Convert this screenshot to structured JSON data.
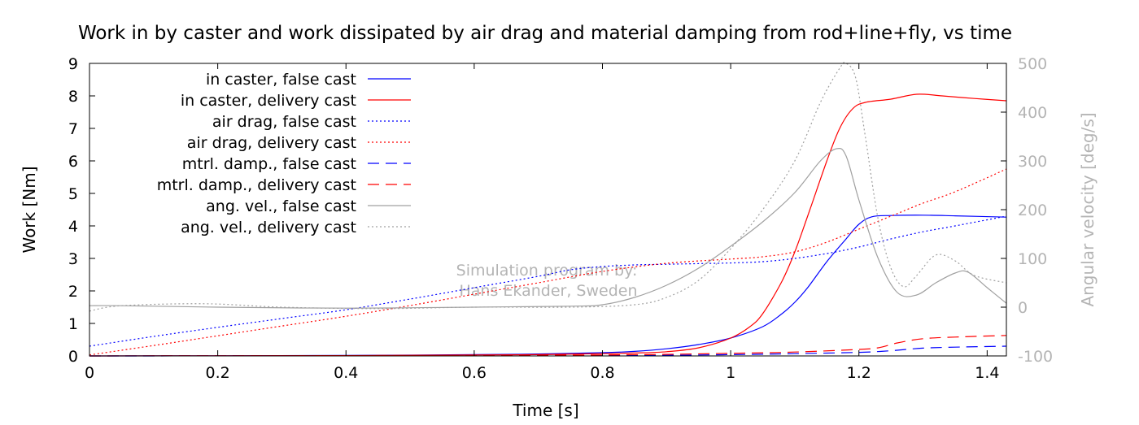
{
  "chart_data": {
    "type": "line",
    "title": "Work in by caster and work dissipated by air drag and material damping from rod+line+fly, vs time",
    "xlabel": "Time [s]",
    "ylabel": "Work [Nm]",
    "y2label": "Angular velocity [deg/s]",
    "xlim": [
      0,
      1.43
    ],
    "ylim": [
      0,
      9
    ],
    "y2lim": [
      -100,
      500
    ],
    "xticks": [
      "0",
      "0.2",
      "0.4",
      "0.6",
      "0.8",
      "1",
      "1.2",
      "1.4"
    ],
    "yticks": [
      "0",
      "1",
      "2",
      "3",
      "4",
      "5",
      "6",
      "7",
      "8",
      "9"
    ],
    "y2ticks": [
      "-100",
      "0",
      "100",
      "200",
      "300",
      "400",
      "500"
    ],
    "grid": false,
    "legend_position": "top-left",
    "watermark": [
      "Simulation program by:",
      "Hans Ekander, Sweden"
    ],
    "series": [
      {
        "name": "in caster, false cast",
        "color": "#0000ff",
        "dash": "solid",
        "axis": "left",
        "points": [
          [
            0,
            0
          ],
          [
            0.2,
            0.005
          ],
          [
            0.4,
            0.015
          ],
          [
            0.6,
            0.04
          ],
          [
            0.7,
            0.06
          ],
          [
            0.8,
            0.1
          ],
          [
            0.85,
            0.14
          ],
          [
            0.9,
            0.22
          ],
          [
            0.95,
            0.35
          ],
          [
            1.0,
            0.55
          ],
          [
            1.05,
            0.9
          ],
          [
            1.08,
            1.3
          ],
          [
            1.1,
            1.65
          ],
          [
            1.12,
            2.1
          ],
          [
            1.15,
            2.9
          ],
          [
            1.18,
            3.6
          ],
          [
            1.2,
            4.05
          ],
          [
            1.22,
            4.28
          ],
          [
            1.25,
            4.32
          ],
          [
            1.3,
            4.33
          ],
          [
            1.35,
            4.31
          ],
          [
            1.43,
            4.27
          ]
        ]
      },
      {
        "name": "in caster, delivery cast",
        "color": "#ff0000",
        "dash": "solid",
        "axis": "left",
        "points": [
          [
            0,
            0
          ],
          [
            0.2,
            0.005
          ],
          [
            0.4,
            0.01
          ],
          [
            0.6,
            0.03
          ],
          [
            0.7,
            0.04
          ],
          [
            0.8,
            0.07
          ],
          [
            0.85,
            0.09
          ],
          [
            0.9,
            0.13
          ],
          [
            0.95,
            0.25
          ],
          [
            1.0,
            0.55
          ],
          [
            1.03,
            0.9
          ],
          [
            1.05,
            1.3
          ],
          [
            1.08,
            2.3
          ],
          [
            1.1,
            3.2
          ],
          [
            1.12,
            4.3
          ],
          [
            1.15,
            6.0
          ],
          [
            1.17,
            7.0
          ],
          [
            1.19,
            7.6
          ],
          [
            1.21,
            7.8
          ],
          [
            1.25,
            7.9
          ],
          [
            1.29,
            8.05
          ],
          [
            1.33,
            8.0
          ],
          [
            1.38,
            7.92
          ],
          [
            1.43,
            7.85
          ]
        ]
      },
      {
        "name": "air drag, false cast",
        "color": "#0000ff",
        "dash": "2,3",
        "axis": "left",
        "points": [
          [
            0,
            0.3
          ],
          [
            0.1,
            0.6
          ],
          [
            0.2,
            0.88
          ],
          [
            0.3,
            1.15
          ],
          [
            0.4,
            1.42
          ],
          [
            0.5,
            1.75
          ],
          [
            0.6,
            2.1
          ],
          [
            0.7,
            2.45
          ],
          [
            0.75,
            2.65
          ],
          [
            0.8,
            2.75
          ],
          [
            0.85,
            2.8
          ],
          [
            0.9,
            2.82
          ],
          [
            0.95,
            2.84
          ],
          [
            1.0,
            2.86
          ],
          [
            1.05,
            2.9
          ],
          [
            1.1,
            3.0
          ],
          [
            1.15,
            3.15
          ],
          [
            1.2,
            3.35
          ],
          [
            1.25,
            3.6
          ],
          [
            1.3,
            3.82
          ],
          [
            1.35,
            4.0
          ],
          [
            1.43,
            4.3
          ]
        ]
      },
      {
        "name": "air drag, delivery cast",
        "color": "#ff0000",
        "dash": "2,3",
        "axis": "left",
        "points": [
          [
            0,
            0.03
          ],
          [
            0.1,
            0.32
          ],
          [
            0.2,
            0.62
          ],
          [
            0.3,
            0.92
          ],
          [
            0.4,
            1.22
          ],
          [
            0.5,
            1.55
          ],
          [
            0.6,
            1.9
          ],
          [
            0.7,
            2.25
          ],
          [
            0.8,
            2.6
          ],
          [
            0.9,
            2.85
          ],
          [
            1.0,
            2.98
          ],
          [
            1.05,
            3.05
          ],
          [
            1.1,
            3.2
          ],
          [
            1.15,
            3.5
          ],
          [
            1.2,
            3.9
          ],
          [
            1.25,
            4.3
          ],
          [
            1.3,
            4.7
          ],
          [
            1.35,
            5.05
          ],
          [
            1.43,
            5.75
          ]
        ]
      },
      {
        "name": "mtrl. damp., false cast",
        "color": "#0000ff",
        "dash": "14,8",
        "axis": "left",
        "points": [
          [
            0,
            0
          ],
          [
            0.4,
            0.005
          ],
          [
            0.8,
            0.01
          ],
          [
            1.0,
            0.04
          ],
          [
            1.1,
            0.07
          ],
          [
            1.2,
            0.11
          ],
          [
            1.25,
            0.16
          ],
          [
            1.3,
            0.24
          ],
          [
            1.35,
            0.27
          ],
          [
            1.43,
            0.3
          ]
        ]
      },
      {
        "name": "mtrl. damp., delivery cast",
        "color": "#ff0000",
        "dash": "14,8",
        "axis": "left",
        "points": [
          [
            0,
            0
          ],
          [
            0.4,
            0.01
          ],
          [
            0.8,
            0.03
          ],
          [
            1.0,
            0.08
          ],
          [
            1.1,
            0.12
          ],
          [
            1.2,
            0.2
          ],
          [
            1.23,
            0.25
          ],
          [
            1.26,
            0.4
          ],
          [
            1.3,
            0.53
          ],
          [
            1.35,
            0.58
          ],
          [
            1.43,
            0.63
          ]
        ]
      },
      {
        "name": "ang. vel., false cast",
        "color": "#a0a0a0",
        "dash": "solid",
        "axis": "right",
        "points": [
          [
            0,
            3
          ],
          [
            0.05,
            3
          ],
          [
            0.2,
            0
          ],
          [
            0.4,
            -2
          ],
          [
            0.6,
            0
          ],
          [
            0.75,
            2
          ],
          [
            0.8,
            5
          ],
          [
            0.85,
            20
          ],
          [
            0.9,
            45
          ],
          [
            0.95,
            80
          ],
          [
            1.0,
            125
          ],
          [
            1.05,
            175
          ],
          [
            1.1,
            235
          ],
          [
            1.14,
            300
          ],
          [
            1.165,
            325
          ],
          [
            1.18,
            310
          ],
          [
            1.2,
            220
          ],
          [
            1.23,
            100
          ],
          [
            1.26,
            30
          ],
          [
            1.29,
            25
          ],
          [
            1.32,
            50
          ],
          [
            1.35,
            70
          ],
          [
            1.37,
            72
          ],
          [
            1.4,
            40
          ],
          [
            1.43,
            8
          ]
        ]
      },
      {
        "name": "ang. vel., delivery cast",
        "color": "#a0a0a0",
        "dash": "2,3",
        "axis": "right",
        "points": [
          [
            0,
            -8
          ],
          [
            0.05,
            3
          ],
          [
            0.18,
            7
          ],
          [
            0.3,
            0
          ],
          [
            0.45,
            -3
          ],
          [
            0.6,
            0
          ],
          [
            0.75,
            0
          ],
          [
            0.85,
            5
          ],
          [
            0.9,
            20
          ],
          [
            0.95,
            55
          ],
          [
            1.0,
            120
          ],
          [
            1.05,
            200
          ],
          [
            1.1,
            300
          ],
          [
            1.14,
            420
          ],
          [
            1.17,
            490
          ],
          [
            1.18,
            500
          ],
          [
            1.195,
            470
          ],
          [
            1.21,
            350
          ],
          [
            1.23,
            180
          ],
          [
            1.25,
            80
          ],
          [
            1.27,
            42
          ],
          [
            1.29,
            65
          ],
          [
            1.32,
            107
          ],
          [
            1.35,
            95
          ],
          [
            1.38,
            65
          ],
          [
            1.43,
            50
          ]
        ]
      }
    ]
  }
}
